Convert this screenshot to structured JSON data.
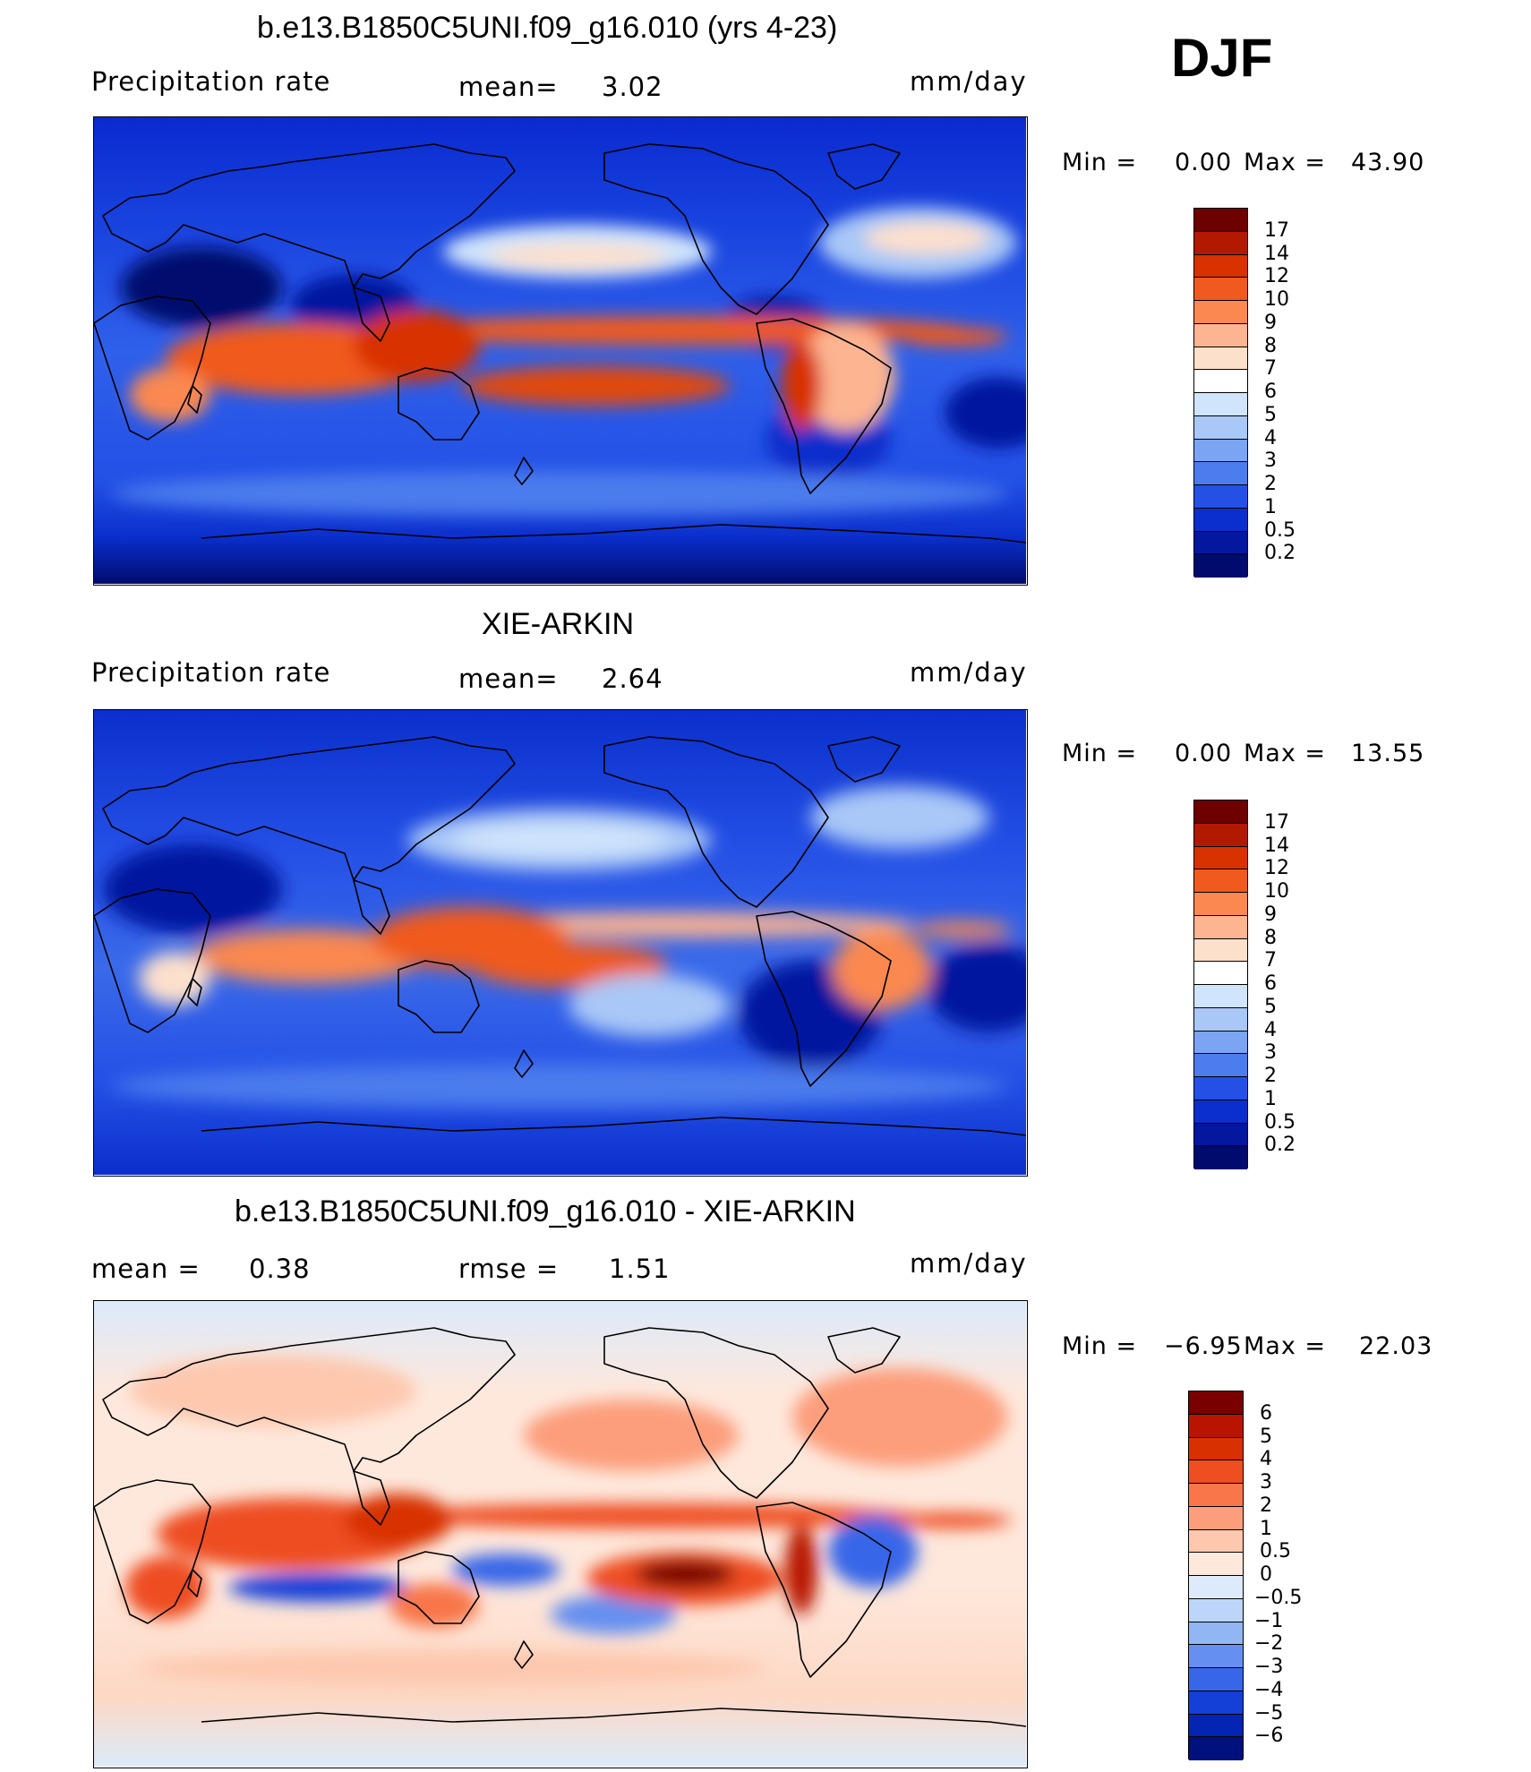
{
  "header": {
    "season": "DJF"
  },
  "chart_data": [
    {
      "type": "heatmap",
      "title": "b.e13.B1850C5UNI.f09_g16.010 (yrs 4-23)",
      "variable": "Precipitation rate",
      "stat1_label": "mean=",
      "stat1_value": "3.02",
      "units": "mm/day",
      "min_text": "Min =",
      "min_value": "0.00",
      "max_text": "Max =",
      "max_value": "43.90",
      "colorbar_levels": [
        "17",
        "14",
        "12",
        "10",
        "9",
        "8",
        "7",
        "6",
        "5",
        "4",
        "3",
        "2",
        "1",
        "0.5",
        "0.2"
      ],
      "colorbar_colors": [
        "#6e0000",
        "#b21a00",
        "#d83200",
        "#f05a1e",
        "#fa8850",
        "#fdb490",
        "#fde0cc",
        "#ffffff",
        "#d0e4fb",
        "#a9c7f7",
        "#7ba4f2",
        "#4c7ced",
        "#2450e6",
        "#0b2fcc",
        "#04189f",
        "#000b6e"
      ]
    },
    {
      "type": "heatmap",
      "title": "XIE-ARKIN",
      "variable": "Precipitation rate",
      "stat1_label": "mean=",
      "stat1_value": "2.64",
      "units": "mm/day",
      "min_text": "Min =",
      "min_value": "0.00",
      "max_text": "Max =",
      "max_value": "13.55",
      "colorbar_levels": [
        "17",
        "14",
        "12",
        "10",
        "9",
        "8",
        "7",
        "6",
        "5",
        "4",
        "3",
        "2",
        "1",
        "0.5",
        "0.2"
      ],
      "colorbar_colors": [
        "#6e0000",
        "#b21a00",
        "#d83200",
        "#f05a1e",
        "#fa8850",
        "#fdb490",
        "#fde0cc",
        "#ffffff",
        "#d0e4fb",
        "#a9c7f7",
        "#7ba4f2",
        "#4c7ced",
        "#2450e6",
        "#0b2fcc",
        "#04189f",
        "#000b6e"
      ]
    },
    {
      "type": "heatmap",
      "title": "b.e13.B1850C5UNI.f09_g16.010 - XIE-ARKIN",
      "stat1_label": "mean =",
      "stat1_value": "0.38",
      "stat2_label": "rmse =",
      "stat2_value": "1.51",
      "units": "mm/day",
      "min_text": "Min =",
      "min_value": "−6.95",
      "max_text": "Max =",
      "max_value": "22.03",
      "colorbar_levels": [
        "6",
        "5",
        "4",
        "3",
        "2",
        "1",
        "0.5",
        "0",
        "−0.5",
        "−1",
        "−2",
        "−3",
        "−4",
        "−5",
        "−6"
      ],
      "colorbar_colors": [
        "#7a0000",
        "#b81400",
        "#d83000",
        "#ee4e20",
        "#f8764a",
        "#fc9e7c",
        "#fdc8ae",
        "#fee8dc",
        "#dceafb",
        "#bcd5f8",
        "#92b6f4",
        "#658ff0",
        "#3866e8",
        "#1440d8",
        "#0424b4",
        "#00117e"
      ]
    }
  ]
}
